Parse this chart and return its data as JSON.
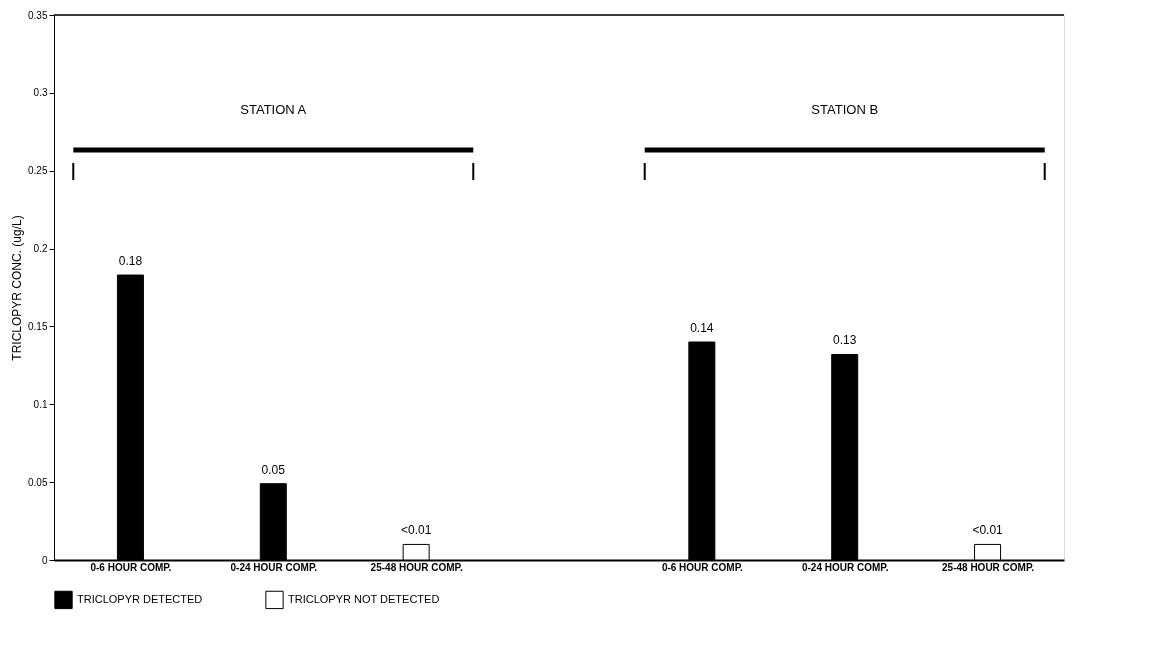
{
  "chart_data": {
    "type": "bar",
    "ylabel": "TRICLOPYR CONC. (ug/L)",
    "categories": [
      "0-6 HOUR COMP.",
      "0-24 HOUR COMP.",
      "25-48 HOUR COMP.",
      null,
      "0-6 HOUR COMP.",
      "0-24 HOUR COMP.",
      "25-48 HOUR COMP."
    ],
    "series": [
      {
        "name": "TRICLOPYR DETECTED",
        "color": "#000000",
        "values": [
          0.183,
          0.049,
          null,
          null,
          0.14,
          0.132,
          null
        ],
        "value_labels": [
          "0.18",
          "0.05",
          null,
          null,
          "0.14",
          "0.13",
          null
        ]
      },
      {
        "name": "TRICLOPYR NOT DETECTED",
        "color": "#ffffff",
        "values": [
          null,
          null,
          0.01,
          null,
          null,
          null,
          0.01
        ],
        "value_labels": [
          null,
          null,
          "<0.01",
          null,
          null,
          null,
          "<0.01"
        ]
      }
    ],
    "ylim": [
      0,
      0.35
    ],
    "yticks": [
      0,
      0.05,
      0.1,
      0.15,
      0.2,
      0.25,
      0.3,
      0.35
    ],
    "annotations": [
      "STATION A",
      "STATION B"
    ],
    "grid": false,
    "legend": "bottom"
  }
}
